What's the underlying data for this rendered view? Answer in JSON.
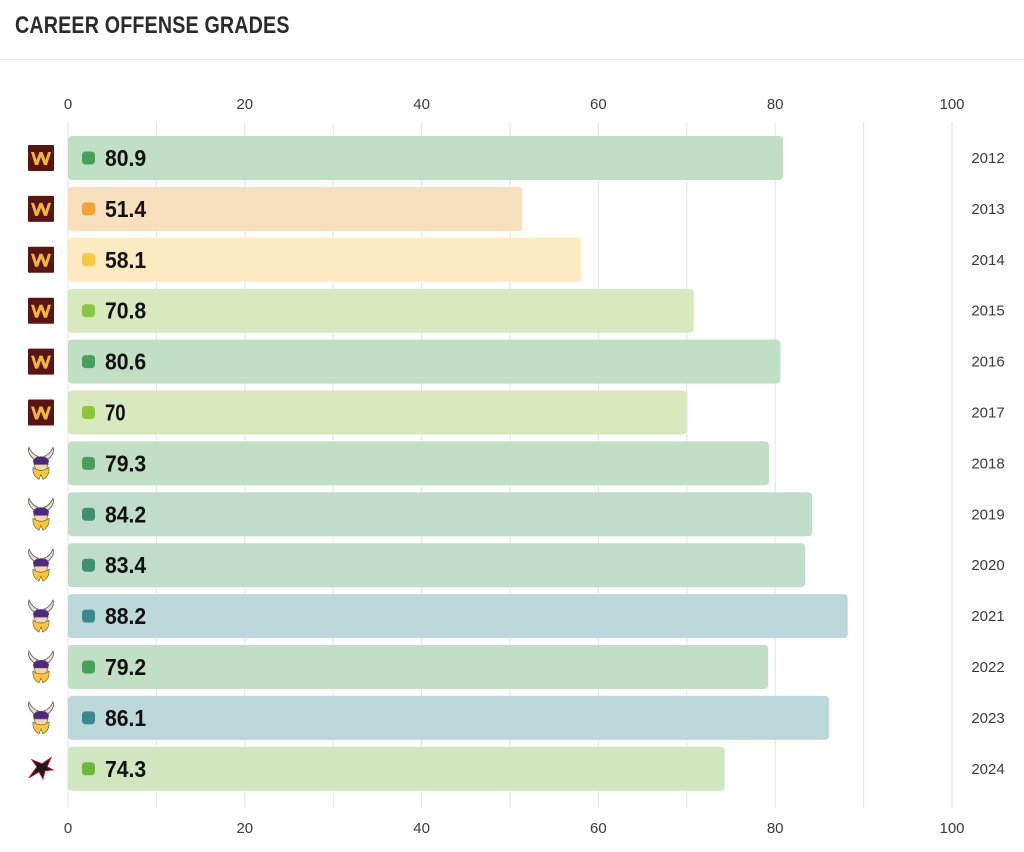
{
  "page_title": "CAREER OFFENSE GRADES",
  "chart_data": {
    "type": "bar",
    "orientation": "horizontal",
    "title": "CAREER OFFENSE GRADES",
    "categories": [
      "2012",
      "2013",
      "2014",
      "2015",
      "2016",
      "2017",
      "2018",
      "2019",
      "2020",
      "2021",
      "2022",
      "2023",
      "2024"
    ],
    "values": [
      80.9,
      51.4,
      58.1,
      70.8,
      80.6,
      70,
      79.3,
      84.2,
      83.4,
      88.2,
      79.2,
      86.1,
      74.3
    ],
    "value_labels": [
      "80.9",
      "51.4",
      "58.1",
      "70.8",
      "80.6",
      "70",
      "79.3",
      "84.2",
      "83.4",
      "88.2",
      "79.2",
      "86.1",
      "74.3"
    ],
    "teams": [
      "washington",
      "washington",
      "washington",
      "washington",
      "washington",
      "washington",
      "vikings",
      "vikings",
      "vikings",
      "vikings",
      "vikings",
      "vikings",
      "falcons"
    ],
    "team_icons": {
      "washington": "washington-w-logo-icon",
      "vikings": "vikings-helmet-logo-icon",
      "falcons": "falcons-logo-icon"
    },
    "xlim": [
      0,
      100
    ],
    "ticks": [
      0,
      20,
      40,
      60,
      80,
      100
    ],
    "tick_labels": [
      "0",
      "20",
      "40",
      "60",
      "80",
      "100"
    ],
    "axis_ticks_top_and_bottom": true,
    "grid": true,
    "grade_colors": [
      {
        "min": 0,
        "dot": "#f0a336",
        "fill": "#f8dfbd"
      },
      {
        "min": 55,
        "dot": "#f5c842",
        "fill": "#fdeac0"
      },
      {
        "min": 65,
        "dot": "#8cc63f",
        "fill": "#d9e9bf"
      },
      {
        "min": 72,
        "dot": "#6fb63d",
        "fill": "#cfe6bf"
      },
      {
        "min": 77,
        "dot": "#47a05a",
        "fill": "#c0dfc4"
      },
      {
        "min": 82,
        "dot": "#3e9070",
        "fill": "#bfdccd"
      },
      {
        "min": 86,
        "dot": "#3a8a8d",
        "fill": "#bdd8da"
      }
    ]
  }
}
